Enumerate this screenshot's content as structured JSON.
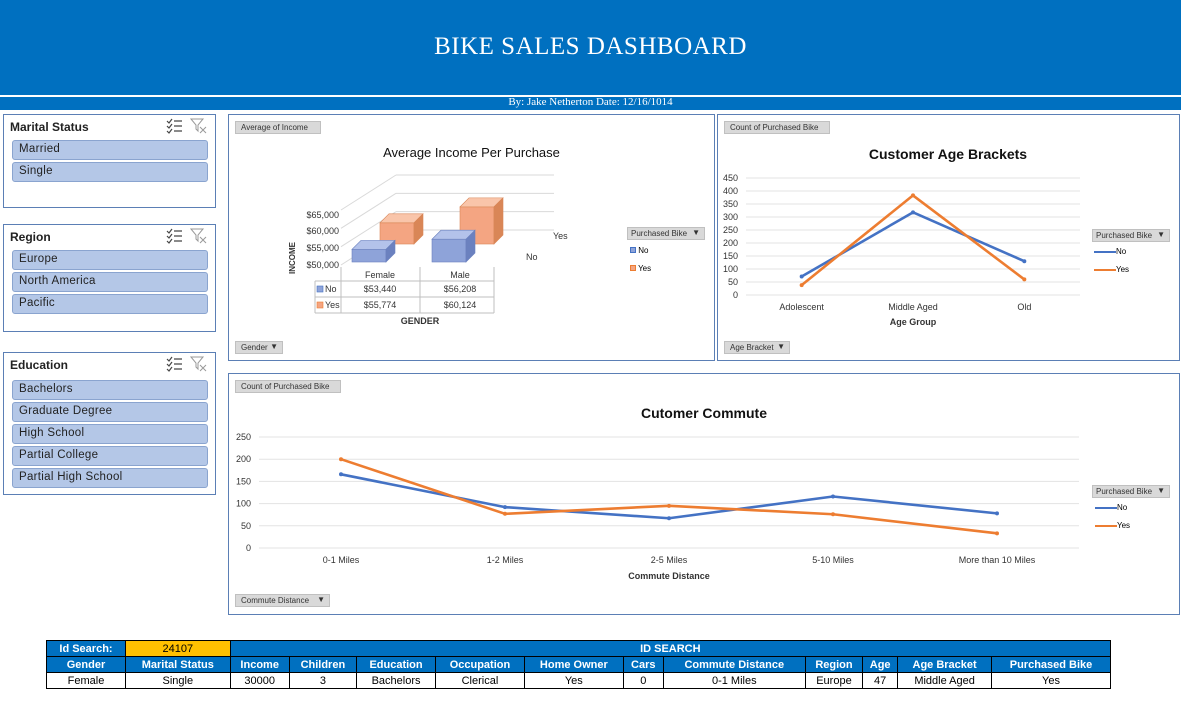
{
  "header": {
    "title": "BIKE SALES DASHBOARD",
    "byline": "By: Jake Netherton Date: 12/16/1014"
  },
  "slicers": {
    "marital": {
      "title": "Marital Status",
      "items": [
        "Married",
        "Single"
      ]
    },
    "region": {
      "title": "Region",
      "items": [
        "Europe",
        "North America",
        "Pacific"
      ]
    },
    "education": {
      "title": "Education",
      "items": [
        "Bachelors",
        "Graduate Degree",
        "High School",
        "Partial College",
        "Partial High School"
      ]
    }
  },
  "income_panel": {
    "value_button": "Average of Income",
    "axis_button": "Gender",
    "legend_button": "Purchased Bike",
    "legend": [
      "No",
      "Yes"
    ],
    "depth_labels": [
      "Yes",
      "No"
    ]
  },
  "age_panel": {
    "value_button": "Count of Purchased Bike",
    "axis_button": "Age Bracket",
    "legend_button": "Purchased Bike",
    "legend": [
      "No",
      "Yes"
    ]
  },
  "commute_panel": {
    "value_button": "Count of Purchased Bike",
    "axis_button": "Commute Distance",
    "legend_button": "Purchased Bike",
    "legend": [
      "No",
      "Yes"
    ]
  },
  "chart_data": [
    {
      "type": "bar",
      "title": "Average Income Per Purchase",
      "xlabel": "GENDER",
      "ylabel": "INCOME",
      "categories": [
        "Female",
        "Male"
      ],
      "series": [
        {
          "name": "No",
          "values": [
            53440,
            56208
          ],
          "labels": [
            "$53,440",
            "$56,208"
          ]
        },
        {
          "name": "Yes",
          "values": [
            55774,
            60124
          ],
          "labels": [
            "$55,774",
            "$60,124"
          ]
        }
      ],
      "ylim": [
        50000,
        65000
      ],
      "yticks": [
        "$50,000",
        "$55,000",
        "$60,000",
        "$65,000"
      ],
      "colors": {
        "No": "#8ea3d9",
        "Yes": "#f4a582"
      }
    },
    {
      "type": "line",
      "title": "Customer Age Brackets",
      "xlabel": "Age Group",
      "ylabel": "",
      "categories": [
        "Adolescent",
        "Middle Aged",
        "Old"
      ],
      "series": [
        {
          "name": "No",
          "values": [
            71,
            318,
            130
          ]
        },
        {
          "name": "Yes",
          "values": [
            38,
            383,
            60
          ]
        }
      ],
      "ylim": [
        0,
        450
      ],
      "yticks": [
        0,
        50,
        100,
        150,
        200,
        250,
        300,
        350,
        400,
        450
      ],
      "colors": {
        "No": "#4472c4",
        "Yes": "#ed7d31"
      }
    },
    {
      "type": "line",
      "title": "Cutomer Commute",
      "xlabel": "Commute Distance",
      "ylabel": "",
      "categories": [
        "0-1 Miles",
        "1-2 Miles",
        "2-5 Miles",
        "5-10 Miles",
        "More than 10 Miles"
      ],
      "series": [
        {
          "name": "No",
          "values": [
            166,
            92,
            67,
            116,
            78
          ]
        },
        {
          "name": "Yes",
          "values": [
            200,
            77,
            95,
            76,
            33
          ]
        }
      ],
      "ylim": [
        0,
        250
      ],
      "yticks": [
        0,
        50,
        100,
        150,
        200,
        250
      ],
      "colors": {
        "No": "#4472c4",
        "Yes": "#ed7d31"
      }
    }
  ],
  "id_lookup": {
    "search_label": "Id Search:",
    "search_value": "24107",
    "banner": "ID SEARCH",
    "columns": [
      "Gender",
      "Marital Status",
      "Income",
      "Children",
      "Education",
      "Occupation",
      "Home Owner",
      "Cars",
      "Commute Distance",
      "Region",
      "Age",
      "Age Bracket",
      "Purchased Bike"
    ],
    "row": [
      "Female",
      "Single",
      "30000",
      "3",
      "Bachelors",
      "Clerical",
      "Yes",
      "0",
      "0-1 Miles",
      "Europe",
      "47",
      "Middle Aged",
      "Yes"
    ]
  },
  "colors": {
    "banner": "#0070c0",
    "slicer_item": "#b4c7e7",
    "search_highlight": "#ffc000"
  }
}
